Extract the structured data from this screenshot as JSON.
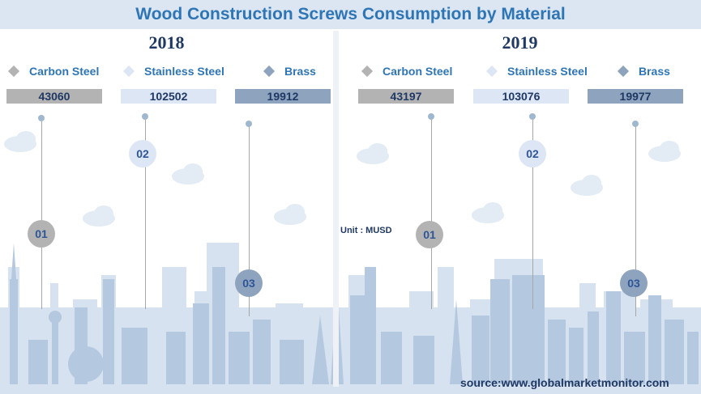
{
  "title": "Wood Construction Screws Consumption by Material",
  "unit": "Unit : MUSD",
  "source": "source:www.globalmarketmonitor.com",
  "colors": {
    "carbon_steel": "#b3b3b3",
    "stainless_steel": "#dde6f5",
    "brass": "#8ea3bd",
    "accent": "#2e75b6"
  },
  "chart_data": [
    {
      "type": "table",
      "title": "2018",
      "categories": [
        "Carbon Steel",
        "Stainless Steel",
        "Brass"
      ],
      "values": [
        43060,
        102502,
        19912
      ],
      "markers": [
        "01",
        "02",
        "03"
      ]
    },
    {
      "type": "table",
      "title": "2019",
      "categories": [
        "Carbon Steel",
        "Stainless Steel",
        "Brass"
      ],
      "values": [
        43197,
        103076,
        19977
      ],
      "markers": [
        "01",
        "02",
        "03"
      ]
    }
  ]
}
